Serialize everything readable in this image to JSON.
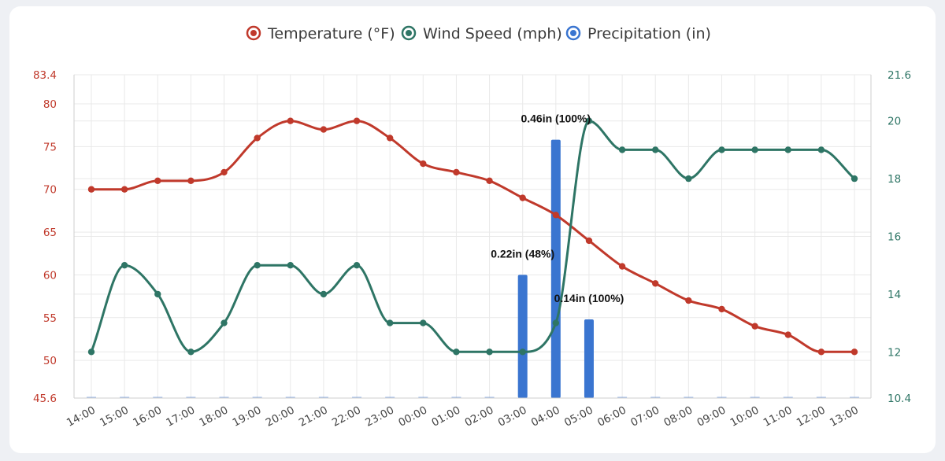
{
  "colors": {
    "temperature": "#c0392b",
    "wind": "#2e7565",
    "precip": "#3a75d0",
    "grid": "#e9e9e9",
    "axis": "#cfcfcf"
  },
  "legend": [
    {
      "key": "temperature",
      "label": "Temperature (°F)"
    },
    {
      "key": "wind",
      "label": "Wind Speed (mph)"
    },
    {
      "key": "precip",
      "label": "Precipitation (in)"
    }
  ],
  "chart_data": {
    "type": "line",
    "x": [
      "14:00",
      "15:00",
      "16:00",
      "17:00",
      "18:00",
      "19:00",
      "20:00",
      "21:00",
      "22:00",
      "23:00",
      "00:00",
      "01:00",
      "02:00",
      "03:00",
      "04:00",
      "05:00",
      "06:00",
      "07:00",
      "08:00",
      "09:00",
      "10:00",
      "11:00",
      "12:00",
      "13:00"
    ],
    "y_left": {
      "range": [
        45.6,
        83.4
      ],
      "ticks": [
        "83.4",
        "80",
        "75",
        "70",
        "65",
        "60",
        "55",
        "50",
        "45.6"
      ]
    },
    "y_right": {
      "range": [
        10.4,
        21.6
      ],
      "ticks": [
        "21.6",
        "20",
        "18",
        "16",
        "14",
        "12",
        "10.4"
      ]
    },
    "grid": true,
    "legend_position": "top-center",
    "series": [
      {
        "name": "Temperature (°F)",
        "key": "temperature",
        "type": "line",
        "axis": "left",
        "values": [
          70,
          70,
          71,
          71,
          72,
          76,
          78,
          77,
          78,
          76,
          73,
          72,
          71,
          69,
          67,
          64,
          61,
          59,
          57,
          56,
          54,
          53,
          51,
          51
        ]
      },
      {
        "name": "Wind Speed (mph)",
        "key": "wind",
        "type": "line",
        "axis": "right",
        "values": [
          12,
          15,
          14,
          12,
          13,
          15,
          15,
          14,
          15,
          13,
          13,
          12,
          12,
          12,
          13,
          20,
          19,
          19,
          18,
          19,
          19,
          19,
          19,
          18
        ]
      },
      {
        "name": "Precipitation (in)",
        "key": "precip",
        "type": "bar",
        "axis": "left",
        "values": [
          0,
          0,
          0,
          0,
          0,
          0,
          0,
          0,
          0,
          0,
          0,
          0,
          0,
          0.22,
          0.46,
          0.14,
          0,
          0,
          0,
          0,
          0,
          0,
          0,
          0
        ],
        "probability": [
          0,
          0,
          0,
          0,
          0,
          0,
          0,
          0,
          0,
          0,
          0,
          0,
          0,
          48,
          100,
          100,
          0,
          0,
          0,
          0,
          0,
          0,
          0,
          0
        ],
        "labels": [
          "",
          "",
          "",
          "",
          "",
          "",
          "",
          "",
          "",
          "",
          "",
          "",
          "",
          "0.22in (48%)",
          "0.46in (100%)",
          "0.14in (100%)",
          "",
          "",
          "",
          "",
          "",
          "",
          "",
          ""
        ],
        "display_values_left_axis": [
          45.6,
          45.6,
          45.6,
          45.6,
          45.6,
          45.6,
          45.6,
          45.6,
          45.6,
          45.6,
          45.6,
          45.6,
          45.6,
          60.0,
          75.8,
          54.8,
          45.6,
          45.6,
          45.6,
          45.6,
          45.6,
          45.6,
          45.6,
          45.6
        ]
      }
    ]
  }
}
